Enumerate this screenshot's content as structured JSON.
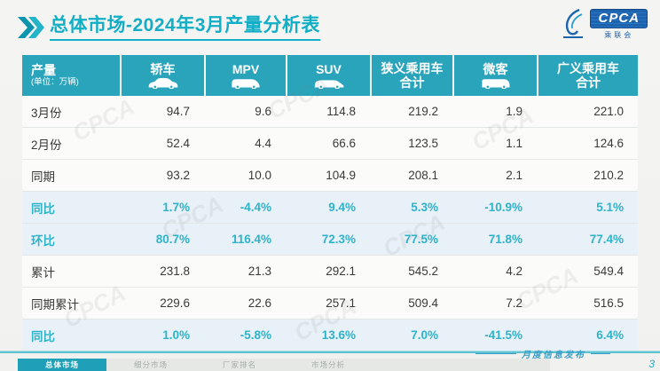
{
  "header": {
    "title": "总体市场-2024年3月产量分析表",
    "logo": {
      "text": "CPCA",
      "subtext": "乘联会"
    }
  },
  "chart_data": {
    "type": "table",
    "title": "总体市场-2024年3月产量分析表",
    "corner": {
      "label": "产量",
      "sub": "(单位：万辆)"
    },
    "columns": [
      {
        "label": "轿车",
        "icon": "sedan-icon"
      },
      {
        "label": "MPV",
        "icon": "mpv-icon"
      },
      {
        "label": "SUV",
        "icon": "suv-icon"
      },
      {
        "label": "狭义乘用车",
        "sub": "合计"
      },
      {
        "label": "微客",
        "icon": "van-icon"
      },
      {
        "label": "广义乘用车",
        "sub": "合计"
      }
    ],
    "rows": [
      {
        "label": "3月份",
        "values": [
          "94.7",
          "9.6",
          "114.8",
          "219.2",
          "1.9",
          "221.0"
        ],
        "highlight": false
      },
      {
        "label": "2月份",
        "values": [
          "52.4",
          "4.4",
          "66.6",
          "123.5",
          "1.1",
          "124.6"
        ],
        "highlight": false
      },
      {
        "label": "同期",
        "values": [
          "93.2",
          "10.0",
          "104.9",
          "208.1",
          "2.1",
          "210.2"
        ],
        "highlight": false
      },
      {
        "label": "同比",
        "values": [
          "1.7%",
          "-4.4%",
          "9.4%",
          "5.3%",
          "-10.9%",
          "5.1%"
        ],
        "highlight": true
      },
      {
        "label": "环比",
        "values": [
          "80.7%",
          "116.4%",
          "72.3%",
          "77.5%",
          "71.8%",
          "77.4%"
        ],
        "highlight": true
      },
      {
        "label": "累计",
        "values": [
          "231.8",
          "21.3",
          "292.1",
          "545.2",
          "4.2",
          "549.4"
        ],
        "highlight": false
      },
      {
        "label": "同期累计",
        "values": [
          "229.6",
          "22.6",
          "257.1",
          "509.4",
          "7.2",
          "516.5"
        ],
        "highlight": false
      },
      {
        "label": "同比",
        "values": [
          "1.0%",
          "-5.8%",
          "13.6%",
          "7.0%",
          "-41.5%",
          "6.4%"
        ],
        "highlight": true
      }
    ]
  },
  "watermark": "CPCA",
  "footer": {
    "tabs": [
      {
        "label": "总体市场",
        "active": true
      },
      {
        "label": "细分市场",
        "active": false
      },
      {
        "label": "厂家排名",
        "active": false
      },
      {
        "label": "市场分析",
        "active": false
      }
    ],
    "caption": "月度信息发布",
    "page": "3"
  },
  "colors": {
    "accent": "#12aec6",
    "table_header_bg": "#2aa4bb",
    "highlight_text": "#2fb3ca",
    "highlight_row_bg": "#e8f1f7",
    "logo_blue": "#1e63ad"
  }
}
